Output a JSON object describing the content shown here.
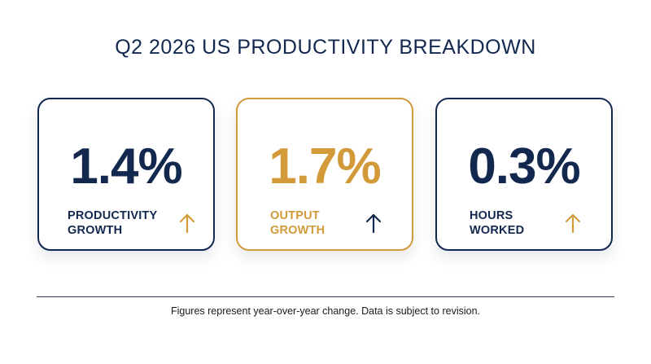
{
  "title": "Q2 2026 US PRODUCTIVITY BREAKDOWN",
  "cards": [
    {
      "value": "1.4%",
      "label_line1": "PRODUCTIVITY",
      "label_line2": "GROWTH",
      "arrow_icon": "arrow-up-icon",
      "value_color": "#13284f",
      "label_color": "#13284f",
      "arrow_color": "#d39a3a",
      "border_color": "#13284f"
    },
    {
      "value": "1.7%",
      "label_line1": "OUTPUT",
      "label_line2": "GROWTH",
      "arrow_icon": "arrow-up-icon",
      "value_color": "#d39a3a",
      "label_color": "#d39a3a",
      "arrow_color": "#13284f",
      "border_color": "#d39a3a"
    },
    {
      "value": "0.3%",
      "label_line1": "HOURS",
      "label_line2": "WORKED",
      "arrow_icon": "arrow-up-icon",
      "value_color": "#13284f",
      "label_color": "#13284f",
      "arrow_color": "#d39a3a",
      "border_color": "#13284f"
    }
  ],
  "footnote": "Figures represent year-over-year change. Data is subject to revision."
}
